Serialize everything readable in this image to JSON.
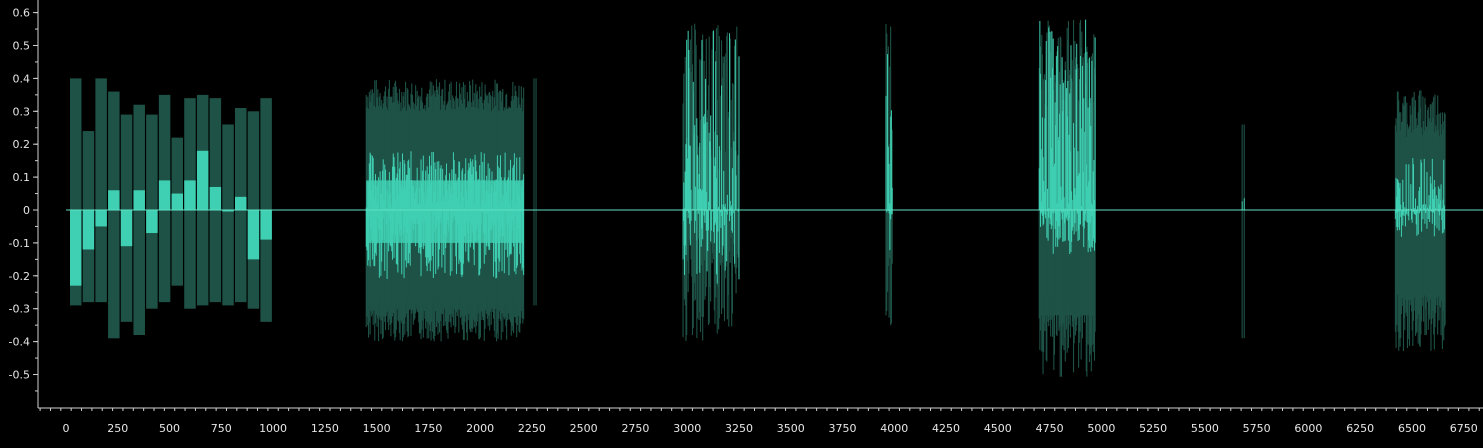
{
  "view": {
    "type": "audio-waveform-amplitude-view",
    "x_axis": {
      "labels": [
        "0",
        "250",
        "500",
        "750",
        "1000",
        "1250",
        "1500",
        "1750",
        "2000",
        "2250",
        "2500",
        "2750",
        "3000",
        "3250",
        "3500",
        "3750",
        "4000",
        "4250",
        "4500",
        "4750",
        "5000",
        "5250",
        "5500",
        "5750",
        "6000",
        "6250",
        "6500",
        "6750"
      ],
      "range": [
        0,
        6750
      ]
    },
    "y_axis": {
      "labels": [
        "0.6",
        "0.5",
        "0.4",
        "0.3",
        "0.2",
        "0.1",
        "0",
        "-0.1",
        "-0.2",
        "-0.3",
        "-0.4",
        "-0.5"
      ],
      "range": [
        -0.5,
        0.6
      ]
    },
    "colors": {
      "background": "#000000",
      "peak_envelope": "#1e5246",
      "rms_body": "#3fcfb2",
      "zero_line": "#5fe0c4",
      "axis": "#cfcfcf",
      "label_text": "#e6e6e6"
    }
  },
  "chart_data": {
    "type": "area",
    "segments": [
      {
        "start": 0,
        "end": 1000,
        "peak_max": 0.4,
        "peak_min": -0.39,
        "rms_max": 0.18,
        "rms_min": -0.23
      },
      {
        "start": 1450,
        "end": 2210,
        "peak_max": 0.4,
        "peak_min": -0.4,
        "rms_max": 0.18,
        "rms_min": -0.21
      },
      {
        "start": 2260,
        "end": 2270,
        "peak_max": 0.4,
        "peak_min": -0.29,
        "rms_max": 0.0,
        "rms_min": 0.0
      },
      {
        "start": 2980,
        "end": 3250,
        "peak_max": 0.57,
        "peak_min": -0.41,
        "rms_max": 0.57,
        "rms_min": -0.24
      },
      {
        "start": 3960,
        "end": 3990,
        "peak_max": 0.57,
        "peak_min": -0.39,
        "rms_max": 0.57,
        "rms_min": -0.14
      },
      {
        "start": 4700,
        "end": 4970,
        "peak_max": 0.58,
        "peak_min": -0.51,
        "rms_max": 0.58,
        "rms_min": -0.14
      },
      {
        "start": 5680,
        "end": 5690,
        "peak_max": 0.26,
        "peak_min": -0.39,
        "rms_max": 0.16,
        "rms_min": 0.0
      },
      {
        "start": 6420,
        "end": 6660,
        "peak_max": 0.37,
        "peak_min": -0.43,
        "rms_max": 0.16,
        "rms_min": -0.1
      }
    ]
  }
}
